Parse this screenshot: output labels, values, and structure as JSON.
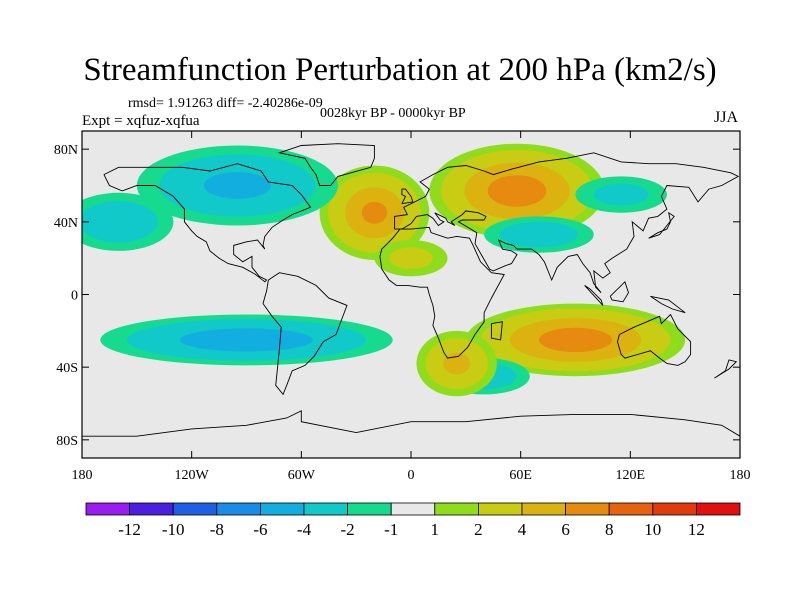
{
  "header": {
    "title": "Streamfunction Perturbation at 200 hPa (km2/s)",
    "rmsd_line": "rmsd= 1.91263 diff= -2.40286e-09",
    "expt_line": "Expt = xqfuz-xqfua",
    "period_line": "0028kyr BP - 0000kyr BP",
    "season": "JJA"
  },
  "chart_data": {
    "type": "heatmap",
    "title": "Streamfunction Perturbation at 200 hPa (km2/s)",
    "projection": "cylindrical equidistant",
    "x_ticks": [
      "180",
      "120W",
      "60W",
      "0",
      "60E",
      "120E",
      "180"
    ],
    "x_tick_values": [
      -180,
      -120,
      -60,
      0,
      60,
      120,
      180
    ],
    "y_ticks": [
      "80N",
      "40N",
      "0",
      "40S",
      "80S"
    ],
    "y_tick_values": [
      80,
      40,
      0,
      -40,
      -80
    ],
    "xlim": [
      -180,
      180
    ],
    "ylim": [
      -90,
      90
    ],
    "colorbar": {
      "labels": [
        "-12",
        "-10",
        "-8",
        "-6",
        "-4",
        "-2",
        "-1",
        "1",
        "2",
        "4",
        "6",
        "8",
        "10",
        "12"
      ],
      "colors": [
        "#9A1CF0",
        "#4A1FE0",
        "#1E5FE6",
        "#1A8CE8",
        "#11AEDF",
        "#12C9C9",
        "#16DB8F",
        "#E8E8E8",
        "#8EDC1B",
        "#C8CC12",
        "#DCB211",
        "#E68A10",
        "#E6630E",
        "#E13A0C",
        "#E11010"
      ]
    },
    "features": [
      {
        "name": "North Atlantic positive",
        "lon": -20,
        "lat": 45,
        "peak": 6
      },
      {
        "name": "Siberia positive",
        "lon": 58,
        "lat": 57,
        "peak": 7
      },
      {
        "name": "Indian Ocean / Australia positive",
        "lon": 90,
        "lat": -25,
        "peak": 7
      },
      {
        "name": "North America negative",
        "lon": -95,
        "lat": 60,
        "peak": -4
      },
      {
        "name": "North Pacific negative",
        "lon": -160,
        "lat": 40,
        "peak": -3
      },
      {
        "name": "South Pacific/Atlantic negative",
        "lon": -90,
        "lat": -25,
        "peak": -5
      },
      {
        "name": "Central Asia negative",
        "lon": 70,
        "lat": 33,
        "peak": -3
      },
      {
        "name": "South Indian Ocean negative",
        "lon": 40,
        "lat": -45,
        "peak": -3
      },
      {
        "name": "South Atlantic positive",
        "lon": 25,
        "lat": -38,
        "peak": 4
      },
      {
        "name": "East Asia negative",
        "lon": 115,
        "lat": 55,
        "peak": -2
      },
      {
        "name": "West Africa positive",
        "lon": 0,
        "lat": 20,
        "peak": 2
      }
    ]
  }
}
